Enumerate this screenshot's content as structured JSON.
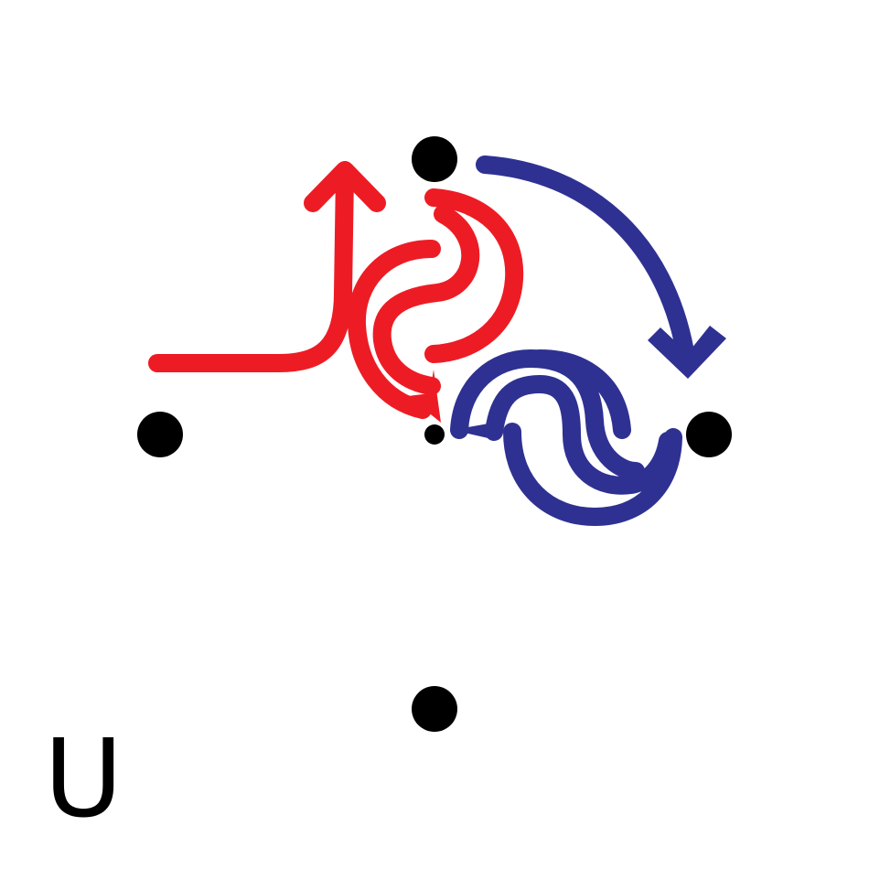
{
  "diagram": {
    "label": "U",
    "colors": {
      "red": "#ed1c24",
      "blue": "#2e3192",
      "dot": "#000000",
      "background": "#ffffff"
    },
    "nodes": [
      "top",
      "left",
      "center",
      "right",
      "bottom"
    ],
    "arrows": [
      {
        "color": "red",
        "kind": "arrow-up"
      },
      {
        "color": "red",
        "kind": "swirl-arrow-to-center"
      },
      {
        "color": "blue",
        "kind": "arc-arrow-top-to-right"
      },
      {
        "color": "blue",
        "kind": "swirl"
      }
    ]
  }
}
